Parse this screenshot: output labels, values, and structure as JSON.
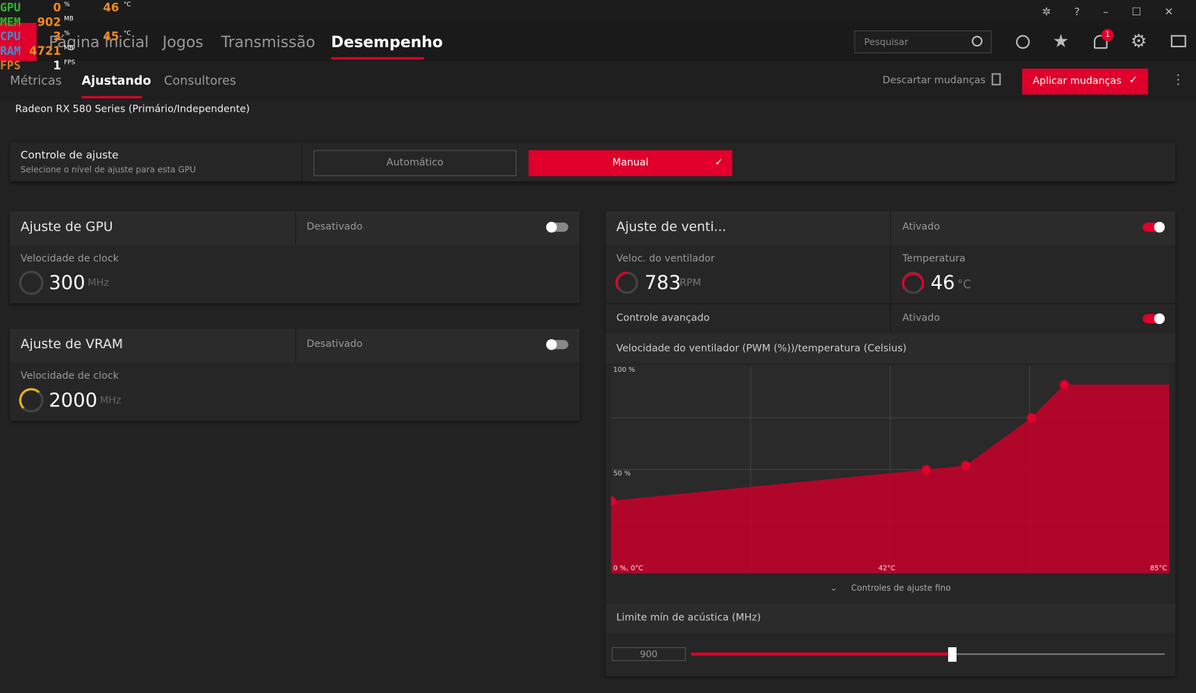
{
  "overlay": {
    "rows": [
      [
        "GPU",
        "0",
        "%",
        "46",
        "°C"
      ],
      [
        "MEM",
        "902",
        "MB"
      ],
      [
        "CPU",
        "3",
        "%",
        "45",
        "°C"
      ],
      [
        "RAM",
        "4721",
        "MB"
      ],
      [
        "FPS",
        "1",
        "FPS"
      ]
    ]
  },
  "nav": {
    "tabs": [
      "Página inicial",
      "Jogos",
      "Transmissão",
      "Desempenho"
    ],
    "search": "Pesquisar",
    "notifications": "1"
  },
  "subnav": {
    "tabs": [
      "Métricas",
      "Ajustando",
      "Consultores"
    ],
    "discard": "Descartar mudanças",
    "apply": "Aplicar mudanças"
  },
  "device": "Radeon RX 580 Series (Primário/Independente)",
  "tuning_control": {
    "title": "Controle de ajuste",
    "subtitle": "Selecione o nível de ajuste para esta GPU",
    "options": [
      "Automático",
      "Manual"
    ]
  },
  "gpu": {
    "title": "Ajuste de GPU",
    "state": "Desativado",
    "metric_label": "Velocidade de clock",
    "value": 300,
    "unit": "MHz"
  },
  "vram": {
    "title": "Ajuste de VRAM",
    "state": "Desativado",
    "metric_label": "Velocidade de clock",
    "value": 2000,
    "unit": "MHz"
  },
  "fan": {
    "title": "Ajuste de venti...",
    "state": "Ativado",
    "speed_label": "Veloc. do ventilador",
    "speed": 783,
    "speed_unit": "RPM",
    "temp_label": "Temperatura",
    "temp": 46,
    "temp_unit": "°C",
    "advanced": "Controle avançado",
    "advanced_state": "Ativado",
    "curve": {
      "type": "area",
      "title": "Velocidade do ventilador (PWM (%))/temperatura (Celsius)",
      "x": [
        0,
        48,
        54,
        64,
        69
      ],
      "values": [
        35,
        50,
        52,
        75,
        91
      ],
      "color": "#c8002a",
      "xlim": [
        0,
        85
      ],
      "ylim": [
        0,
        100
      ],
      "xticks": [
        {
          "value": 0,
          "label": "0 %, 0°C"
        },
        {
          "value": 42,
          "label": "42°C"
        },
        {
          "value": 85,
          "label": "85°C"
        }
      ],
      "yticks": [
        {
          "value": 100,
          "label": "100 %"
        },
        {
          "value": 50,
          "label": "50 %"
        }
      ]
    },
    "fine": "Controles de ajuste fino",
    "acoustic_label": "Limite mín de acústica (MHz)",
    "acoustic": 900
  }
}
